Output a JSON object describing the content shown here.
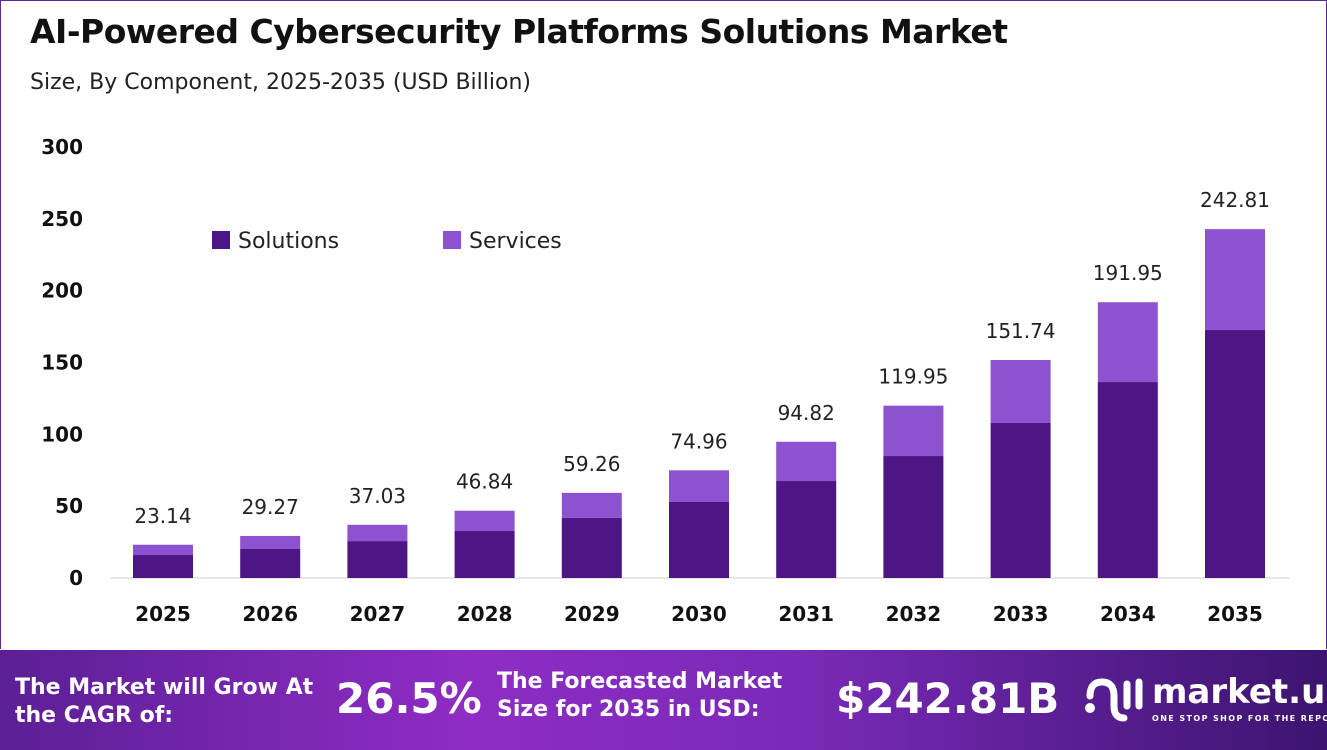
{
  "title": "AI-Powered Cybersecurity Platforms Solutions Market",
  "subtitle": "Size, By Component, 2025-2035 (USD Billion)",
  "colors": {
    "solutions": "#4e1684",
    "services": "#8c52d0"
  },
  "chart_data": {
    "type": "bar",
    "stacked": true,
    "categories": [
      "2025",
      "2026",
      "2027",
      "2028",
      "2029",
      "2030",
      "2031",
      "2032",
      "2033",
      "2034",
      "2035"
    ],
    "series": [
      {
        "name": "Solutions",
        "values": [
          16.0,
          20.2,
          25.7,
          32.7,
          41.8,
          52.9,
          67.5,
          84.9,
          107.9,
          136.4,
          172.6
        ]
      },
      {
        "name": "Services",
        "values": [
          7.14,
          9.07,
          11.33,
          14.14,
          17.46,
          22.06,
          27.32,
          35.05,
          43.84,
          55.55,
          70.21
        ]
      }
    ],
    "totals": [
      "23.14",
      "29.27",
      "37.03",
      "46.84",
      "59.26",
      "74.96",
      "94.82",
      "119.95",
      "151.74",
      "191.95",
      "242.81"
    ],
    "yticks": [
      "0",
      "50",
      "100",
      "150",
      "200",
      "250",
      "300"
    ],
    "ylim": [
      0,
      300
    ],
    "legend_position": "top-left",
    "grid": false
  },
  "footer": {
    "cagr_label": "The Market will Grow At the CAGR of:",
    "cagr_value": "26.5%",
    "forecast_label": "The Forecasted Market Size for 2035 in USD:",
    "forecast_value": "$242.81B",
    "logo_name": "market.us",
    "logo_tagline": "ONE STOP SHOP FOR THE REPORTS"
  }
}
